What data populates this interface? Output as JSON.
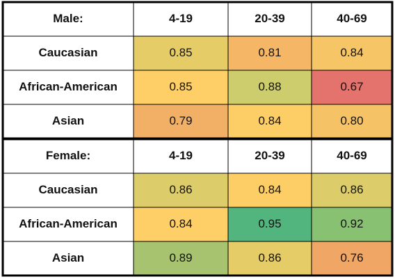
{
  "chart_data": [
    {
      "type": "heatmap",
      "title": "Male:",
      "column_labels": [
        "4-19",
        "20-39",
        "40-69"
      ],
      "row_labels": [
        "Caucasian",
        "African-American",
        "Asian"
      ],
      "values": [
        [
          "0.85",
          "0.81",
          "0.84"
        ],
        [
          "0.85",
          "0.88",
          "0.67"
        ],
        [
          "0.79",
          "0.84",
          "0.80"
        ]
      ],
      "colors": [
        [
          "#e5cc66",
          "#f5b766",
          "#f6c566"
        ],
        [
          "#fdcf66",
          "#cdcd6d",
          "#e4726d"
        ],
        [
          "#f2b066",
          "#fdce66",
          "#f6c266"
        ]
      ]
    },
    {
      "type": "heatmap",
      "title": "Female:",
      "column_labels": [
        "4-19",
        "20-39",
        "40-69"
      ],
      "row_labels": [
        "Caucasian",
        "African-American",
        "Asian"
      ],
      "values": [
        [
          "0.86",
          "0.84",
          "0.86"
        ],
        [
          "0.84",
          "0.95",
          "0.92"
        ],
        [
          "0.89",
          "0.86",
          "0.76"
        ]
      ],
      "colors": [
        [
          "#dccc6a",
          "#fdce66",
          "#dccc6a"
        ],
        [
          "#fdcf66",
          "#52b57e",
          "#89c172"
        ],
        [
          "#a7c36f",
          "#e5cc66",
          "#f0a766"
        ]
      ]
    }
  ]
}
